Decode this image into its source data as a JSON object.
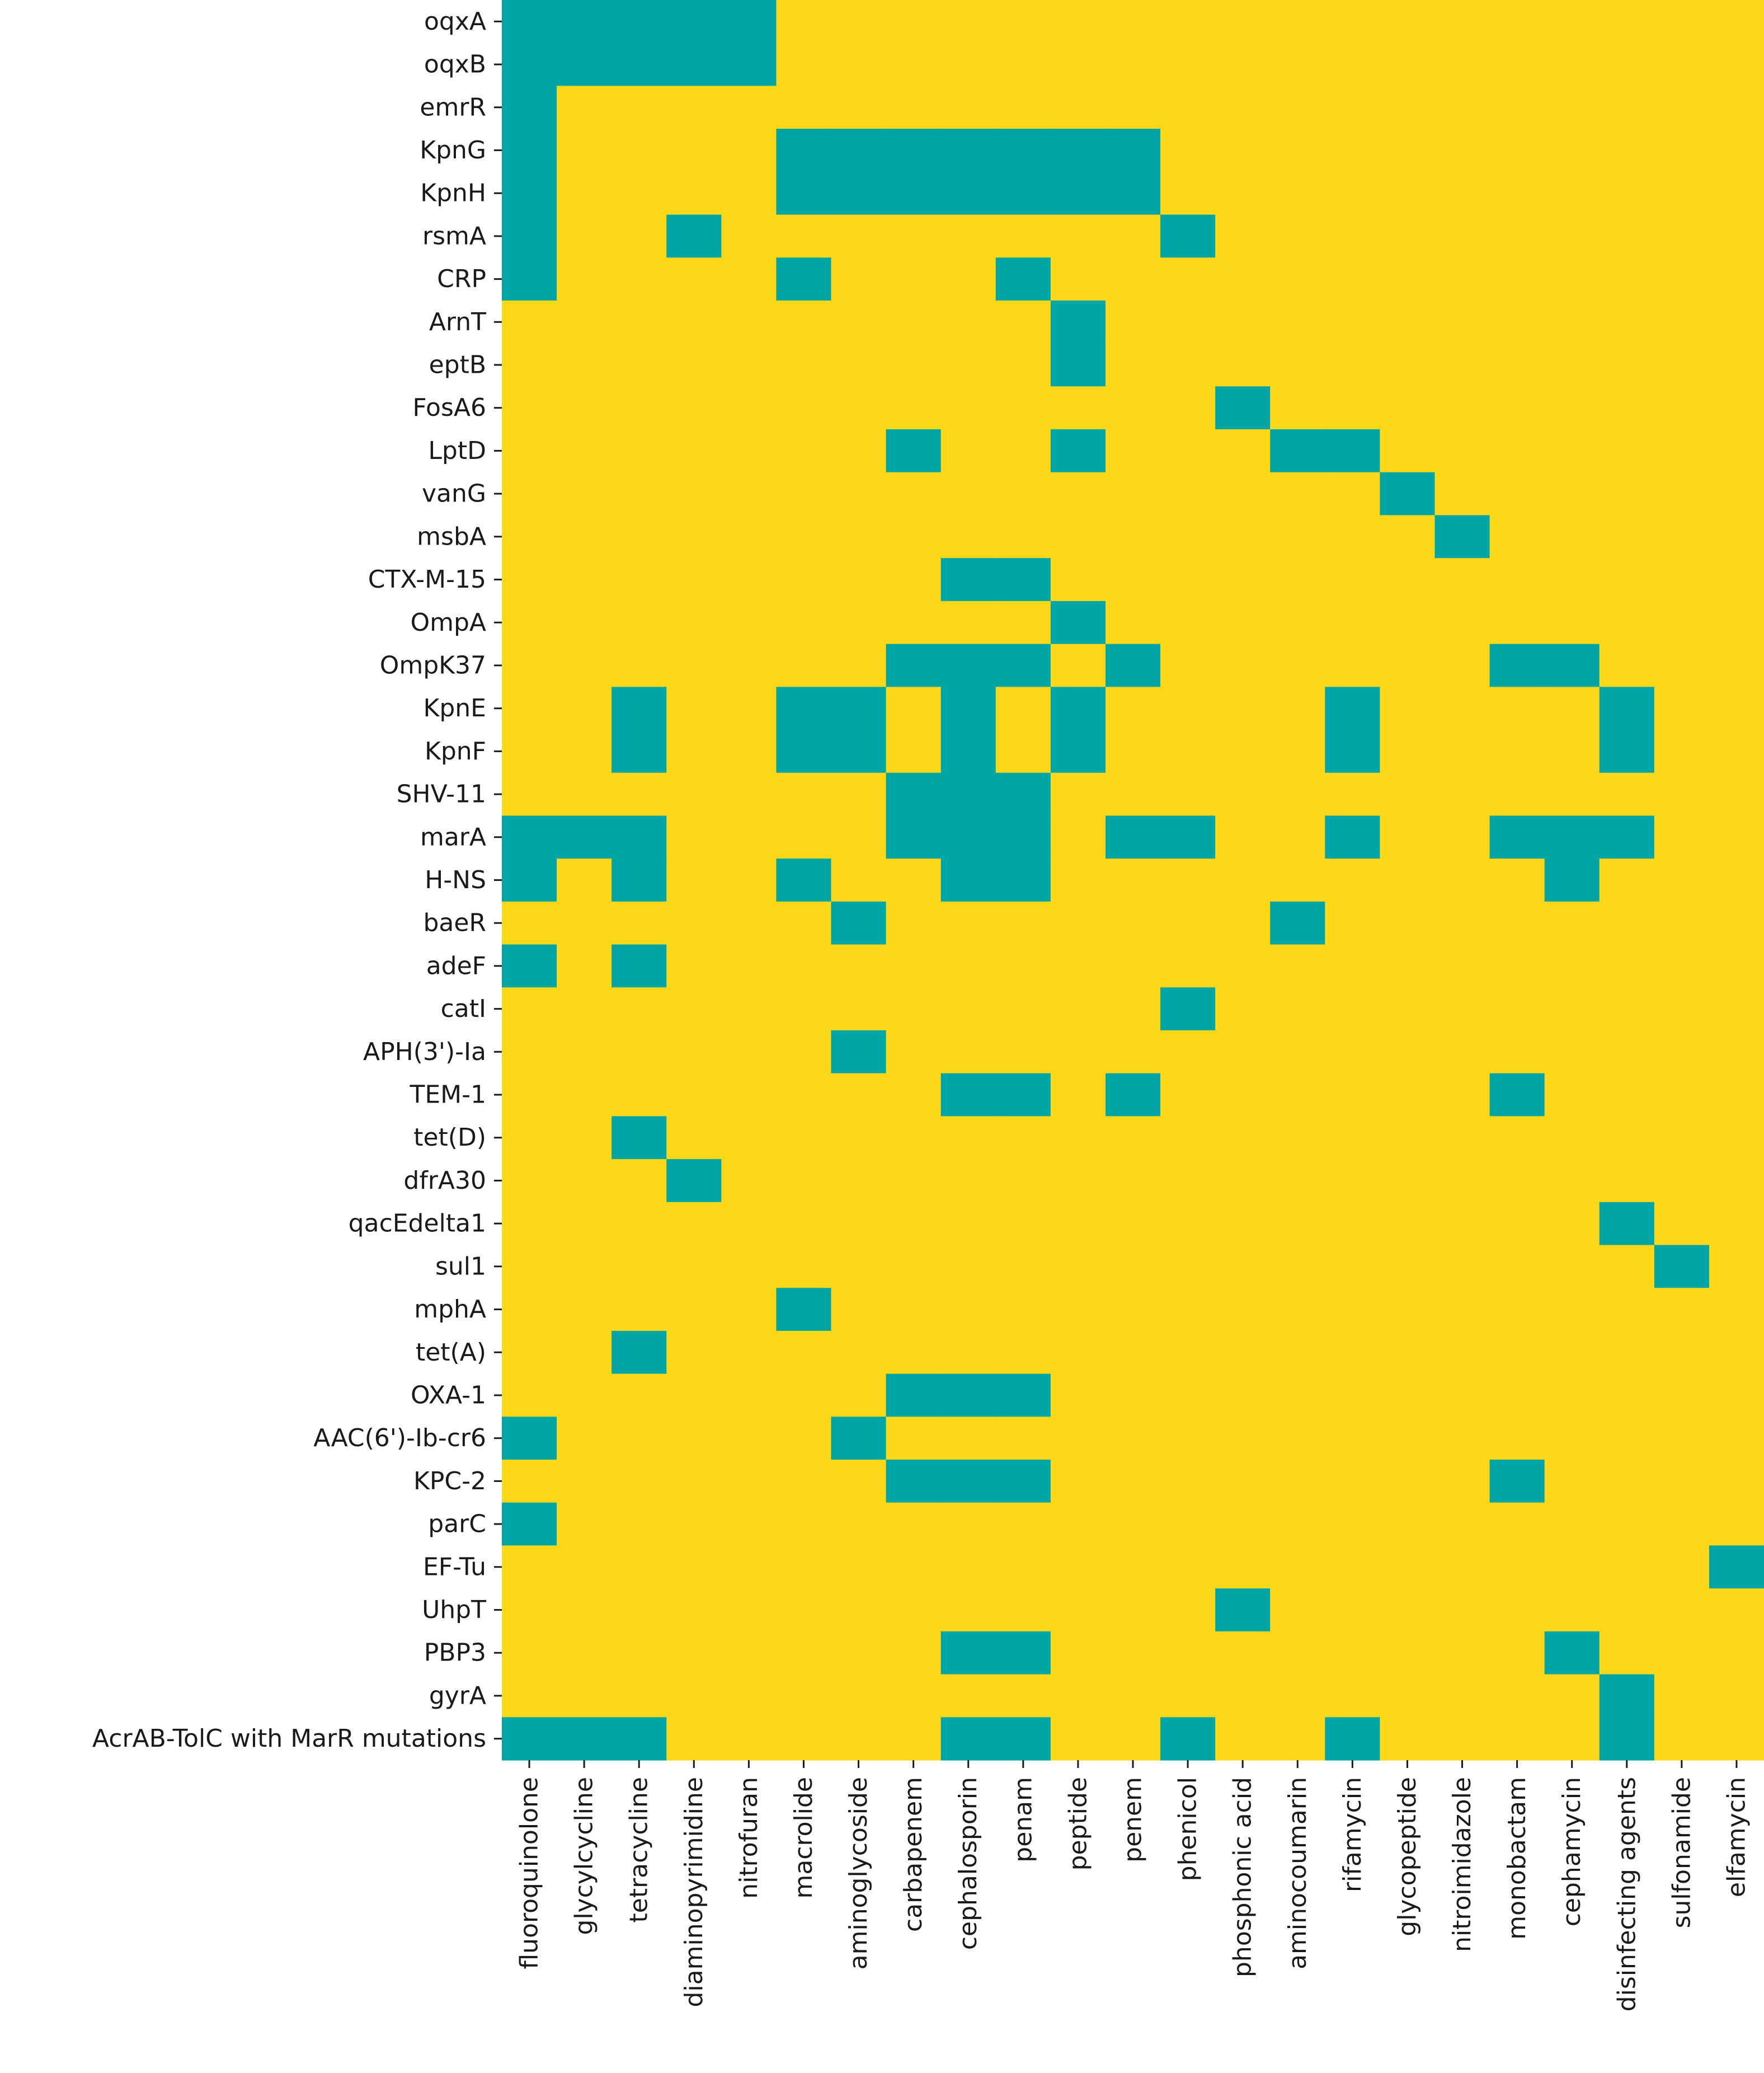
{
  "chart_data": {
    "type": "heatmap",
    "rows": [
      "oqxA",
      "oqxB",
      "emrR",
      "KpnG",
      "KpnH",
      "rsmA",
      "CRP",
      "ArnT",
      "eptB",
      "FosA6",
      "LptD",
      "vanG",
      "msbA",
      "CTX-M-15",
      "OmpA",
      "OmpK37",
      "KpnE",
      "KpnF",
      "SHV-11",
      "marA",
      "H-NS",
      "baeR",
      "adeF",
      "catI",
      "APH(3')-Ia",
      "TEM-1",
      "tet(D)",
      "dfrA30",
      "qacEdelta1",
      "sul1",
      "mphA",
      "tet(A)",
      "OXA-1",
      "AAC(6')-Ib-cr6",
      "KPC-2",
      "parC",
      "EF-Tu",
      "UhpT",
      "PBP3",
      "gyrA",
      "AcrAB-TolC with MarR mutations"
    ],
    "columns": [
      "fluoroquinolone",
      "glycylcycline",
      "tetracycline",
      "diaminopyrimidine",
      "nitrofuran",
      "macrolide",
      "aminoglycoside",
      "carbapenem",
      "cephalosporin",
      "penam",
      "peptide",
      "penem",
      "phenicol",
      "phosphonic acid",
      "aminocoumarin",
      "rifamycin",
      "glycopeptide",
      "nitroimidazole",
      "monobactam",
      "cephamycin",
      "disinfecting agents",
      "sulfonamide",
      "elfamycin"
    ],
    "values": [
      [
        1,
        1,
        1,
        1,
        1,
        0,
        0,
        0,
        0,
        0,
        0,
        0,
        0,
        0,
        0,
        0,
        0,
        0,
        0,
        0,
        0,
        0,
        0
      ],
      [
        1,
        1,
        1,
        1,
        1,
        0,
        0,
        0,
        0,
        0,
        0,
        0,
        0,
        0,
        0,
        0,
        0,
        0,
        0,
        0,
        0,
        0,
        0
      ],
      [
        1,
        0,
        0,
        0,
        0,
        0,
        0,
        0,
        0,
        0,
        0,
        0,
        0,
        0,
        0,
        0,
        0,
        0,
        0,
        0,
        0,
        0,
        0
      ],
      [
        1,
        0,
        0,
        0,
        0,
        1,
        1,
        1,
        1,
        1,
        1,
        1,
        0,
        0,
        0,
        0,
        0,
        0,
        0,
        0,
        0,
        0,
        0
      ],
      [
        1,
        0,
        0,
        0,
        0,
        1,
        1,
        1,
        1,
        1,
        1,
        1,
        0,
        0,
        0,
        0,
        0,
        0,
        0,
        0,
        0,
        0,
        0
      ],
      [
        1,
        0,
        0,
        1,
        0,
        0,
        0,
        0,
        0,
        0,
        0,
        0,
        1,
        0,
        0,
        0,
        0,
        0,
        0,
        0,
        0,
        0,
        0
      ],
      [
        1,
        0,
        0,
        0,
        0,
        1,
        0,
        0,
        0,
        1,
        0,
        0,
        0,
        0,
        0,
        0,
        0,
        0,
        0,
        0,
        0,
        0,
        0
      ],
      [
        0,
        0,
        0,
        0,
        0,
        0,
        0,
        0,
        0,
        0,
        1,
        0,
        0,
        0,
        0,
        0,
        0,
        0,
        0,
        0,
        0,
        0,
        0
      ],
      [
        0,
        0,
        0,
        0,
        0,
        0,
        0,
        0,
        0,
        0,
        1,
        0,
        0,
        0,
        0,
        0,
        0,
        0,
        0,
        0,
        0,
        0,
        0
      ],
      [
        0,
        0,
        0,
        0,
        0,
        0,
        0,
        0,
        0,
        0,
        0,
        0,
        0,
        1,
        0,
        0,
        0,
        0,
        0,
        0,
        0,
        0,
        0
      ],
      [
        0,
        0,
        0,
        0,
        0,
        0,
        0,
        1,
        0,
        0,
        1,
        0,
        0,
        0,
        1,
        1,
        0,
        0,
        0,
        0,
        0,
        0,
        0
      ],
      [
        0,
        0,
        0,
        0,
        0,
        0,
        0,
        0,
        0,
        0,
        0,
        0,
        0,
        0,
        0,
        0,
        1,
        0,
        0,
        0,
        0,
        0,
        0
      ],
      [
        0,
        0,
        0,
        0,
        0,
        0,
        0,
        0,
        0,
        0,
        0,
        0,
        0,
        0,
        0,
        0,
        0,
        1,
        0,
        0,
        0,
        0,
        0
      ],
      [
        0,
        0,
        0,
        0,
        0,
        0,
        0,
        0,
        1,
        1,
        0,
        0,
        0,
        0,
        0,
        0,
        0,
        0,
        0,
        0,
        0,
        0,
        0
      ],
      [
        0,
        0,
        0,
        0,
        0,
        0,
        0,
        0,
        0,
        0,
        1,
        0,
        0,
        0,
        0,
        0,
        0,
        0,
        0,
        0,
        0,
        0,
        0
      ],
      [
        0,
        0,
        0,
        0,
        0,
        0,
        0,
        1,
        1,
        1,
        0,
        1,
        0,
        0,
        0,
        0,
        0,
        0,
        1,
        1,
        0,
        0,
        0
      ],
      [
        0,
        0,
        1,
        0,
        0,
        1,
        1,
        0,
        1,
        0,
        1,
        0,
        0,
        0,
        0,
        1,
        0,
        0,
        0,
        0,
        1,
        0,
        0
      ],
      [
        0,
        0,
        1,
        0,
        0,
        1,
        1,
        0,
        1,
        0,
        1,
        0,
        0,
        0,
        0,
        1,
        0,
        0,
        0,
        0,
        1,
        0,
        0
      ],
      [
        0,
        0,
        0,
        0,
        0,
        0,
        0,
        1,
        1,
        1,
        0,
        0,
        0,
        0,
        0,
        0,
        0,
        0,
        0,
        0,
        0,
        0,
        0
      ],
      [
        1,
        1,
        1,
        0,
        0,
        0,
        0,
        1,
        1,
        1,
        0,
        1,
        1,
        0,
        0,
        1,
        0,
        0,
        1,
        1,
        1,
        0,
        0
      ],
      [
        1,
        0,
        1,
        0,
        0,
        1,
        0,
        0,
        1,
        1,
        0,
        0,
        0,
        0,
        0,
        0,
        0,
        0,
        0,
        1,
        0,
        0,
        0
      ],
      [
        0,
        0,
        0,
        0,
        0,
        0,
        1,
        0,
        0,
        0,
        0,
        0,
        0,
        0,
        1,
        0,
        0,
        0,
        0,
        0,
        0,
        0,
        0
      ],
      [
        1,
        0,
        1,
        0,
        0,
        0,
        0,
        0,
        0,
        0,
        0,
        0,
        0,
        0,
        0,
        0,
        0,
        0,
        0,
        0,
        0,
        0,
        0
      ],
      [
        0,
        0,
        0,
        0,
        0,
        0,
        0,
        0,
        0,
        0,
        0,
        0,
        1,
        0,
        0,
        0,
        0,
        0,
        0,
        0,
        0,
        0,
        0
      ],
      [
        0,
        0,
        0,
        0,
        0,
        0,
        1,
        0,
        0,
        0,
        0,
        0,
        0,
        0,
        0,
        0,
        0,
        0,
        0,
        0,
        0,
        0,
        0
      ],
      [
        0,
        0,
        0,
        0,
        0,
        0,
        0,
        0,
        1,
        1,
        0,
        1,
        0,
        0,
        0,
        0,
        0,
        0,
        1,
        0,
        0,
        0,
        0
      ],
      [
        0,
        0,
        1,
        0,
        0,
        0,
        0,
        0,
        0,
        0,
        0,
        0,
        0,
        0,
        0,
        0,
        0,
        0,
        0,
        0,
        0,
        0,
        0
      ],
      [
        0,
        0,
        0,
        1,
        0,
        0,
        0,
        0,
        0,
        0,
        0,
        0,
        0,
        0,
        0,
        0,
        0,
        0,
        0,
        0,
        0,
        0,
        0
      ],
      [
        0,
        0,
        0,
        0,
        0,
        0,
        0,
        0,
        0,
        0,
        0,
        0,
        0,
        0,
        0,
        0,
        0,
        0,
        0,
        0,
        1,
        0,
        0
      ],
      [
        0,
        0,
        0,
        0,
        0,
        0,
        0,
        0,
        0,
        0,
        0,
        0,
        0,
        0,
        0,
        0,
        0,
        0,
        0,
        0,
        0,
        1,
        0
      ],
      [
        0,
        0,
        0,
        0,
        0,
        1,
        0,
        0,
        0,
        0,
        0,
        0,
        0,
        0,
        0,
        0,
        0,
        0,
        0,
        0,
        0,
        0,
        0
      ],
      [
        0,
        0,
        1,
        0,
        0,
        0,
        0,
        0,
        0,
        0,
        0,
        0,
        0,
        0,
        0,
        0,
        0,
        0,
        0,
        0,
        0,
        0,
        0
      ],
      [
        0,
        0,
        0,
        0,
        0,
        0,
        0,
        1,
        1,
        1,
        0,
        0,
        0,
        0,
        0,
        0,
        0,
        0,
        0,
        0,
        0,
        0,
        0
      ],
      [
        1,
        0,
        0,
        0,
        0,
        0,
        1,
        0,
        0,
        0,
        0,
        0,
        0,
        0,
        0,
        0,
        0,
        0,
        0,
        0,
        0,
        0,
        0
      ],
      [
        0,
        0,
        0,
        0,
        0,
        0,
        0,
        1,
        1,
        1,
        0,
        0,
        0,
        0,
        0,
        0,
        0,
        0,
        1,
        0,
        0,
        0,
        0
      ],
      [
        1,
        0,
        0,
        0,
        0,
        0,
        0,
        0,
        0,
        0,
        0,
        0,
        0,
        0,
        0,
        0,
        0,
        0,
        0,
        0,
        0,
        0,
        0
      ],
      [
        0,
        0,
        0,
        0,
        0,
        0,
        0,
        0,
        0,
        0,
        0,
        0,
        0,
        0,
        0,
        0,
        0,
        0,
        0,
        0,
        0,
        0,
        1
      ],
      [
        0,
        0,
        0,
        0,
        0,
        0,
        0,
        0,
        0,
        0,
        0,
        0,
        0,
        1,
        0,
        0,
        0,
        0,
        0,
        0,
        0,
        0,
        0
      ],
      [
        0,
        0,
        0,
        0,
        0,
        0,
        0,
        0,
        1,
        1,
        0,
        0,
        0,
        0,
        0,
        0,
        0,
        0,
        0,
        1,
        0,
        0,
        0
      ],
      [
        0,
        0,
        0,
        0,
        0,
        0,
        0,
        0,
        0,
        0,
        0,
        0,
        0,
        0,
        0,
        0,
        0,
        0,
        0,
        0,
        1,
        0,
        0
      ],
      [
        1,
        1,
        1,
        0,
        0,
        0,
        0,
        0,
        1,
        1,
        0,
        0,
        1,
        0,
        0,
        1,
        0,
        0,
        0,
        0,
        1,
        0,
        0
      ]
    ],
    "colors": {
      "present": "#00A6A6",
      "absent": "#FDD819"
    },
    "legend": "none",
    "grid": false,
    "title": "",
    "xlabel": "",
    "ylabel": ""
  }
}
